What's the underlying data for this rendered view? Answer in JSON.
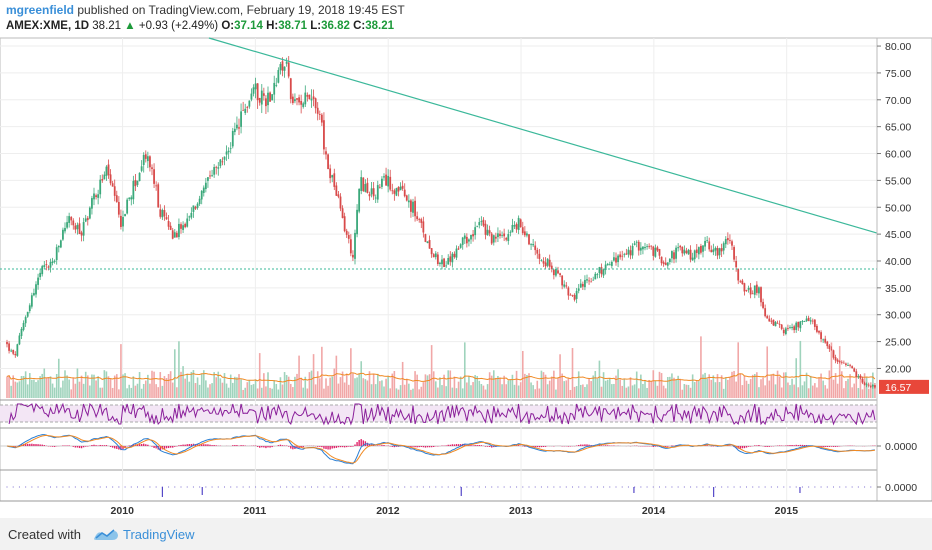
{
  "header": {
    "author": "mgreenfield",
    "published": "published on TradingView.com, February 19, 2018 19:45 EST",
    "symbol": "AMEX:XME, 1D",
    "last": "38.21",
    "change": "+0.93 (+2.49%)",
    "o_label": "O:",
    "o_value": "37.14",
    "h_label": "H:",
    "h_value": "38.71",
    "l_label": "L:",
    "l_value": "36.82",
    "c_label": "C:",
    "c_value": "38.21"
  },
  "footer": {
    "created_with": "Created with",
    "brand": "TradingView"
  },
  "colors": {
    "up": "#3aa87a",
    "down": "#d84a4a",
    "trendline": "#3bb89a",
    "rsi": "#8a1f9a",
    "macd_fast": "#2a7fd4",
    "macd_slow": "#f08a24",
    "hist": "#e0246a",
    "volume_ma": "#f08a24",
    "price_tag": "#e8473a",
    "author": "#3a8fd8"
  },
  "chart_data": [
    {
      "type": "candlestick",
      "panel": "price",
      "y_axis_ticks": [
        "80.00",
        "75.00",
        "70.00",
        "65.00",
        "60.00",
        "55.00",
        "50.00",
        "45.00",
        "40.00",
        "35.00",
        "30.00",
        "25.00",
        "20.00"
      ],
      "y_axis_values": [
        80,
        75,
        70,
        65,
        60,
        55,
        50,
        45,
        40,
        35,
        30,
        25,
        20
      ],
      "ylim": [
        14.5,
        81.5
      ],
      "x_axis_ticks": [
        "2010",
        "2011",
        "2012",
        "2013",
        "2014",
        "2015"
      ],
      "x_axis_years": [
        2010,
        2011,
        2012,
        2013,
        2014,
        2015
      ],
      "xlim": [
        2009.13,
        2015.68
      ],
      "price_path": [
        [
          2009.13,
          25
        ],
        [
          2009.2,
          22
        ],
        [
          2009.3,
          31
        ],
        [
          2009.4,
          38
        ],
        [
          2009.5,
          40
        ],
        [
          2009.6,
          48
        ],
        [
          2009.7,
          45
        ],
        [
          2009.8,
          52
        ],
        [
          2009.9,
          57
        ],
        [
          2010.0,
          47
        ],
        [
          2010.1,
          54
        ],
        [
          2010.2,
          60
        ],
        [
          2010.25,
          55
        ],
        [
          2010.3,
          49
        ],
        [
          2010.4,
          45
        ],
        [
          2010.5,
          47
        ],
        [
          2010.6,
          52
        ],
        [
          2010.7,
          56
        ],
        [
          2010.8,
          60
        ],
        [
          2010.9,
          66
        ],
        [
          2011.0,
          72
        ],
        [
          2011.1,
          70
        ],
        [
          2011.2,
          75
        ],
        [
          2011.25,
          77
        ],
        [
          2011.3,
          68
        ],
        [
          2011.4,
          72
        ],
        [
          2011.5,
          68
        ],
        [
          2011.55,
          58
        ],
        [
          2011.6,
          55
        ],
        [
          2011.7,
          45
        ],
        [
          2011.75,
          41
        ],
        [
          2011.8,
          55
        ],
        [
          2011.9,
          52
        ],
        [
          2012.0,
          55
        ],
        [
          2012.1,
          53
        ],
        [
          2012.2,
          50
        ],
        [
          2012.3,
          44
        ],
        [
          2012.4,
          40
        ],
        [
          2012.45,
          39
        ],
        [
          2012.5,
          41
        ],
        [
          2012.6,
          44
        ],
        [
          2012.7,
          47
        ],
        [
          2012.8,
          44
        ],
        [
          2012.9,
          45
        ],
        [
          2013.0,
          47
        ],
        [
          2013.1,
          43
        ],
        [
          2013.2,
          40
        ],
        [
          2013.3,
          37
        ],
        [
          2013.4,
          33
        ],
        [
          2013.5,
          36
        ],
        [
          2013.6,
          38
        ],
        [
          2013.7,
          40
        ],
        [
          2013.8,
          41
        ],
        [
          2013.9,
          43
        ],
        [
          2014.0,
          42
        ],
        [
          2014.1,
          40
        ],
        [
          2014.2,
          42
        ],
        [
          2014.3,
          41
        ],
        [
          2014.4,
          43
        ],
        [
          2014.5,
          42
        ],
        [
          2014.6,
          44
        ],
        [
          2014.65,
          37
        ],
        [
          2014.7,
          34
        ],
        [
          2014.8,
          35
        ],
        [
          2014.85,
          30
        ],
        [
          2014.9,
          29
        ],
        [
          2015.0,
          27
        ],
        [
          2015.1,
          28
        ],
        [
          2015.2,
          29
        ],
        [
          2015.3,
          25
        ],
        [
          2015.4,
          21
        ],
        [
          2015.5,
          20
        ],
        [
          2015.6,
          17
        ],
        [
          2015.68,
          16.57
        ]
      ],
      "trendline": [
        [
          2010.65,
          81.5
        ],
        [
          2015.68,
          45.2
        ]
      ],
      "horizontal_level": 38.5,
      "last_price_label": "16.57",
      "last_price": 16.57
    },
    {
      "type": "bar",
      "panel": "volume",
      "series": [
        {
          "name": "",
          "values": []
        }
      ],
      "note_visible": false
    },
    {
      "type": "line",
      "panel": "rsi",
      "levels": [
        70,
        30
      ]
    },
    {
      "type": "line",
      "panel": "macd",
      "y_axis_ticks": [
        "0.0000"
      ],
      "y_axis_values": [
        0
      ]
    },
    {
      "type": "bar",
      "panel": "bottom",
      "y_axis_ticks": [
        "0.0000"
      ],
      "y_axis_values": [
        0
      ]
    }
  ]
}
